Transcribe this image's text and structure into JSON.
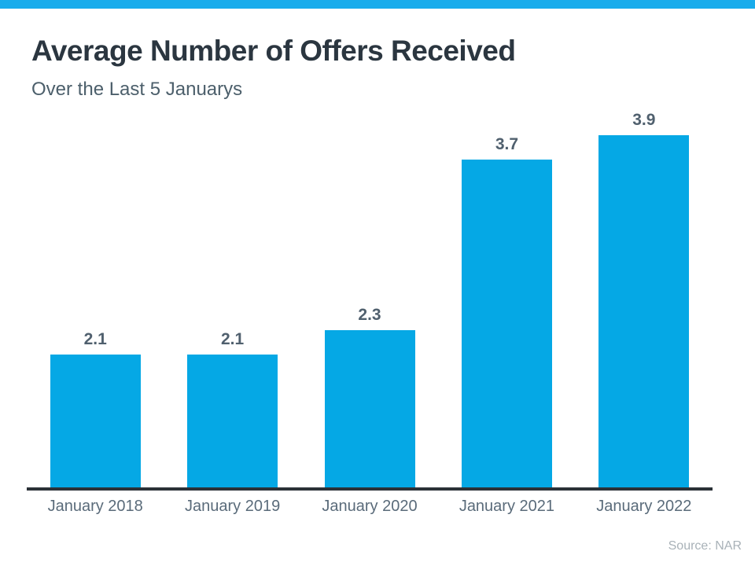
{
  "page": {
    "top_strip_color": "#18acec",
    "background_color": "#ffffff"
  },
  "header": {
    "title": "Average Number of Offers Received",
    "subtitle": "Over the Last 5 Januarys"
  },
  "chart_data": {
    "type": "bar",
    "title": "Average Number of Offers Received",
    "subtitle": "Over the Last 5 Januarys",
    "categories": [
      "January 2018",
      "January 2019",
      "January 2020",
      "January 2021",
      "January 2022"
    ],
    "values": [
      2.1,
      2.1,
      2.3,
      3.7,
      3.9
    ],
    "value_labels": [
      "2.1",
      "2.1",
      "2.3",
      "3.7",
      "3.9"
    ],
    "xlabel": "",
    "ylabel": "",
    "ylim": [
      1.0,
      4.16
    ],
    "grid": false,
    "legend": false,
    "bar_color": "#05a8e5",
    "value_label_color": "#50606e",
    "x_label_color": "#5a6b7a",
    "axis_line_color": "#2b3137",
    "source": "Source: NAR"
  },
  "footer": {
    "source": "Source: NAR"
  }
}
